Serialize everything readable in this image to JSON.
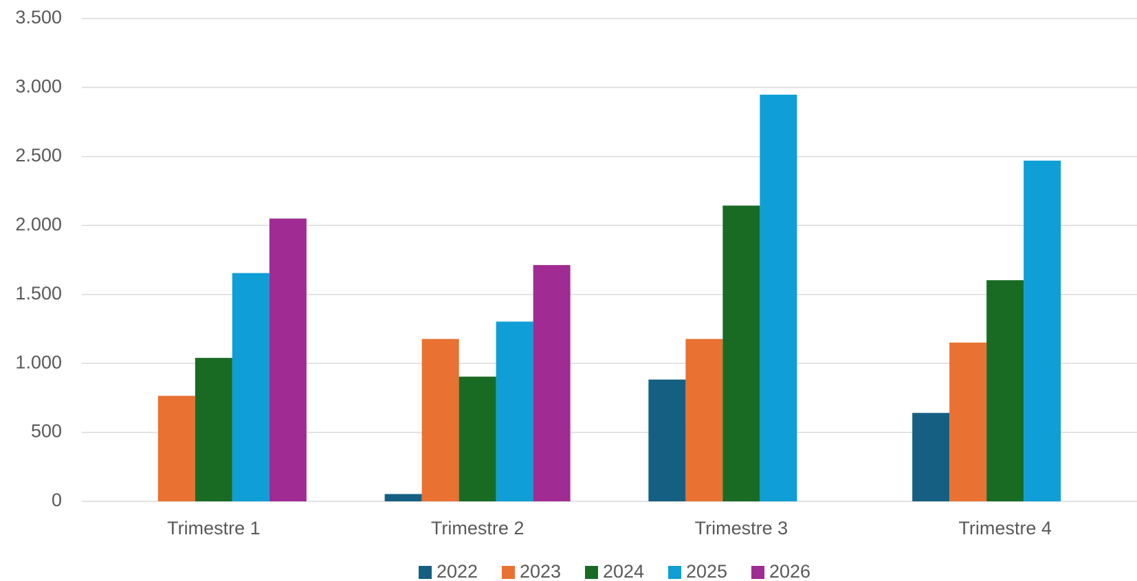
{
  "chart_data": {
    "type": "bar",
    "categories": [
      "Trimestre 1",
      "Trimestre 2",
      "Trimestre 3",
      "Trimestre 4"
    ],
    "series": [
      {
        "name": "2022",
        "color": "#156082",
        "values": [
          null,
          53,
          883,
          641
        ]
      },
      {
        "name": "2023",
        "color": "#e97132",
        "values": [
          765,
          1177,
          1177,
          1151
        ]
      },
      {
        "name": "2024",
        "color": "#196b24",
        "values": [
          1040,
          904,
          2144,
          1603
        ]
      },
      {
        "name": "2025",
        "color": "#0f9ed5",
        "values": [
          1655,
          1303,
          2948,
          2470
        ]
      },
      {
        "name": "2026",
        "color": "#a02b93",
        "values": [
          2050,
          1713,
          null,
          null
        ]
      }
    ],
    "ylim": [
      0,
      3500
    ],
    "yticks": [
      0,
      500,
      {
        "value": 1000,
        "label": "1.000"
      },
      {
        "value": 1500,
        "label": "1.500"
      },
      {
        "value": 2000,
        "label": "2.000"
      },
      {
        "value": 2500,
        "label": "2.500"
      },
      {
        "value": 3000,
        "label": "3.000"
      },
      {
        "value": 3500,
        "label": "3.500"
      }
    ],
    "grid": true,
    "legend": "bottom"
  }
}
